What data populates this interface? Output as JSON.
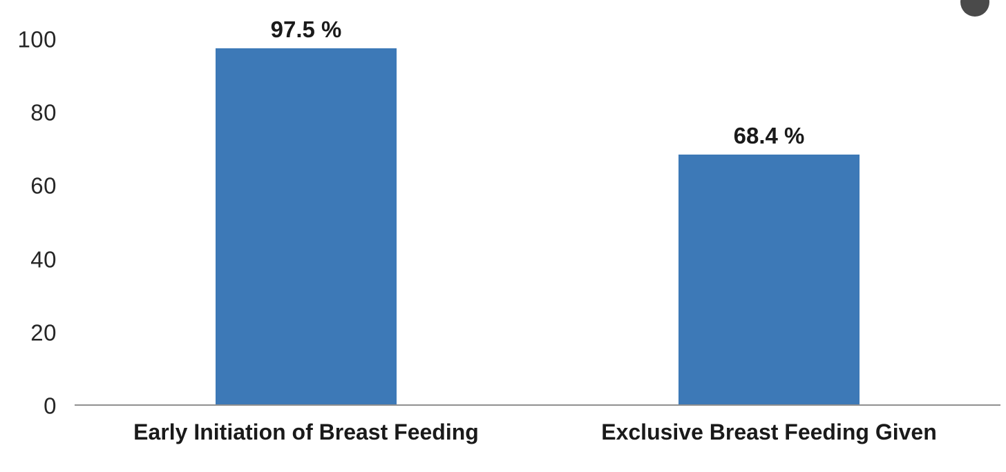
{
  "chart_data": {
    "type": "bar",
    "title": "",
    "xlabel": "",
    "ylabel": "",
    "categories": [
      "Early Initiation of Breast Feeding",
      "Exclusive Breast Feeding Given"
    ],
    "values": [
      97.5,
      68.4
    ],
    "data_labels": [
      "97.5 %",
      "68.4 %"
    ],
    "ylim": [
      0,
      100
    ],
    "yticks": [
      0,
      20,
      40,
      60,
      80,
      100
    ],
    "grid": false,
    "legend": "none",
    "bar_color": "#3D79B7",
    "axis_color": "#8F8F8F",
    "text_color": "#1A1A1A"
  },
  "decoration": {
    "cropped_circle_color": "#4A4A4A"
  }
}
